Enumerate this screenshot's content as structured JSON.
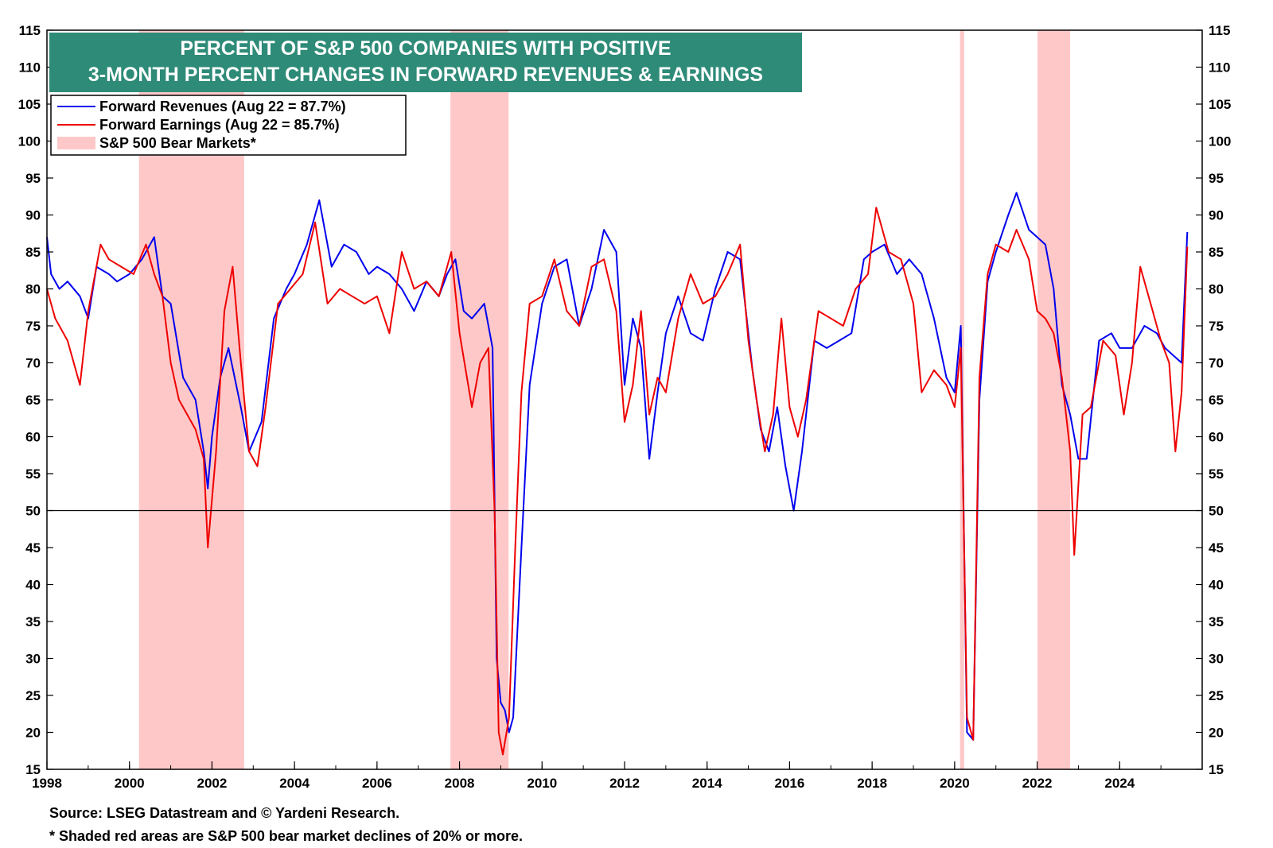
{
  "chart_data": {
    "type": "line",
    "title_lines": [
      "PERCENT OF S&P 500 COMPANIES WITH POSITIVE",
      "3-MONTH PERCENT CHANGES IN FORWARD REVENUES & EARNINGS"
    ],
    "ylim": [
      15,
      115
    ],
    "yticks": [
      15,
      20,
      25,
      30,
      35,
      40,
      45,
      50,
      55,
      60,
      65,
      70,
      75,
      80,
      85,
      90,
      95,
      100,
      105,
      110,
      115
    ],
    "xlim": [
      1998,
      2026
    ],
    "xticks": [
      1998,
      2000,
      2002,
      2004,
      2006,
      2008,
      2010,
      2012,
      2014,
      2016,
      2018,
      2020,
      2022,
      2024
    ],
    "reference_line": 50,
    "grid": false,
    "legend_position": "top-left",
    "legend": [
      {
        "label": "Forward Revenues (Aug 22 = 87.7%)",
        "color": "#0000ee",
        "kind": "line"
      },
      {
        "label": "Forward Earnings (Aug 22 = 85.7%)",
        "color": "#ee0000",
        "kind": "line"
      },
      {
        "label": "S&P 500 Bear Markets*",
        "color": "#ffc8c8",
        "kind": "box"
      }
    ],
    "bear_markets": [
      {
        "start": 2000.23,
        "end": 2002.78
      },
      {
        "start": 2007.78,
        "end": 2009.19
      },
      {
        "start": 2020.13,
        "end": 2020.23
      },
      {
        "start": 2022.01,
        "end": 2022.8
      }
    ],
    "series": [
      {
        "name": "Forward Revenues",
        "color": "#0000ee",
        "x": [
          1998.0,
          1998.1,
          1998.3,
          1998.5,
          1998.8,
          1999.0,
          1999.2,
          1999.5,
          1999.7,
          2000.0,
          2000.3,
          2000.6,
          2000.8,
          2001.0,
          2001.3,
          2001.6,
          2001.8,
          2001.9,
          2002.0,
          2002.2,
          2002.4,
          2002.7,
          2002.9,
          2003.2,
          2003.5,
          2003.8,
          2004.0,
          2004.3,
          2004.6,
          2004.9,
          2005.2,
          2005.5,
          2005.8,
          2006.0,
          2006.3,
          2006.6,
          2006.9,
          2007.2,
          2007.5,
          2007.7,
          2007.9,
          2008.1,
          2008.3,
          2008.6,
          2008.8,
          2008.9,
          2009.0,
          2009.1,
          2009.2,
          2009.3,
          2009.5,
          2009.7,
          2010.0,
          2010.3,
          2010.6,
          2010.9,
          2011.2,
          2011.5,
          2011.8,
          2012.0,
          2012.2,
          2012.4,
          2012.6,
          2012.8,
          2013.0,
          2013.3,
          2013.6,
          2013.9,
          2014.2,
          2014.5,
          2014.8,
          2015.1,
          2015.3,
          2015.5,
          2015.7,
          2015.9,
          2016.1,
          2016.3,
          2016.6,
          2016.9,
          2017.2,
          2017.5,
          2017.8,
          2018.0,
          2018.3,
          2018.6,
          2018.9,
          2019.2,
          2019.5,
          2019.8,
          2020.0,
          2020.15,
          2020.3,
          2020.45,
          2020.6,
          2020.8,
          2021.0,
          2021.3,
          2021.5,
          2021.8,
          2022.0,
          2022.2,
          2022.4,
          2022.6,
          2022.8,
          2023.0,
          2023.2,
          2023.5,
          2023.8,
          2024.0,
          2024.3,
          2024.6,
          2024.9,
          2025.1,
          2025.3,
          2025.5,
          2025.64
        ],
        "values": [
          87,
          82,
          80,
          81,
          79,
          76,
          83,
          82,
          81,
          82,
          84,
          87,
          79,
          78,
          68,
          65,
          58,
          53,
          60,
          68,
          72,
          64,
          58,
          62,
          76,
          80,
          82,
          86,
          92,
          83,
          86,
          85,
          82,
          83,
          82,
          80,
          77,
          81,
          79,
          82,
          84,
          77,
          76,
          78,
          72,
          30,
          24,
          23,
          20,
          22,
          45,
          67,
          78,
          83,
          84,
          75,
          80,
          88,
          85,
          67,
          76,
          72,
          57,
          66,
          74,
          79,
          74,
          73,
          80,
          85,
          84,
          69,
          61,
          58,
          64,
          56,
          50,
          58,
          73,
          72,
          73,
          74,
          84,
          85,
          86,
          82,
          84,
          82,
          76,
          68,
          66,
          75,
          20,
          19,
          65,
          81,
          85,
          90,
          93,
          88,
          87,
          86,
          80,
          67,
          63,
          57,
          57,
          73,
          74,
          72,
          72,
          75,
          74,
          72,
          71,
          70,
          87.7
        ]
      },
      {
        "name": "Forward Earnings",
        "color": "#ee0000",
        "x": [
          1998.0,
          1998.2,
          1998.5,
          1998.8,
          1999.0,
          1999.3,
          1999.5,
          1999.8,
          2000.1,
          2000.4,
          2000.6,
          2000.8,
          2001.0,
          2001.2,
          2001.4,
          2001.6,
          2001.8,
          2001.9,
          2002.1,
          2002.3,
          2002.5,
          2002.7,
          2002.9,
          2003.1,
          2003.3,
          2003.6,
          2003.9,
          2004.2,
          2004.5,
          2004.8,
          2005.1,
          2005.4,
          2005.7,
          2006.0,
          2006.3,
          2006.6,
          2006.9,
          2007.2,
          2007.5,
          2007.8,
          2008.0,
          2008.3,
          2008.5,
          2008.7,
          2008.85,
          2008.95,
          2009.05,
          2009.2,
          2009.35,
          2009.5,
          2009.7,
          2010.0,
          2010.3,
          2010.6,
          2010.9,
          2011.2,
          2011.5,
          2011.8,
          2012.0,
          2012.2,
          2012.4,
          2012.6,
          2012.8,
          2013.0,
          2013.3,
          2013.6,
          2013.9,
          2014.2,
          2014.5,
          2014.8,
          2015.0,
          2015.2,
          2015.4,
          2015.6,
          2015.8,
          2016.0,
          2016.2,
          2016.4,
          2016.7,
          2017.0,
          2017.3,
          2017.6,
          2017.9,
          2018.1,
          2018.4,
          2018.7,
          2019.0,
          2019.2,
          2019.5,
          2019.8,
          2020.0,
          2020.15,
          2020.3,
          2020.45,
          2020.6,
          2020.8,
          2021.0,
          2021.3,
          2021.5,
          2021.8,
          2022.0,
          2022.2,
          2022.4,
          2022.6,
          2022.8,
          2022.9,
          2023.1,
          2023.3,
          2023.6,
          2023.9,
          2024.1,
          2024.3,
          2024.5,
          2024.8,
          2025.0,
          2025.2,
          2025.35,
          2025.5,
          2025.64
        ],
        "values": [
          80,
          76,
          73,
          67,
          77,
          86,
          84,
          83,
          82,
          86,
          82,
          79,
          70,
          65,
          63,
          61,
          57,
          45,
          58,
          77,
          83,
          70,
          58,
          56,
          64,
          78,
          80,
          82,
          89,
          78,
          80,
          79,
          78,
          79,
          74,
          85,
          80,
          81,
          79,
          85,
          74,
          64,
          70,
          72,
          50,
          20,
          17,
          22,
          45,
          66,
          78,
          79,
          84,
          77,
          75,
          83,
          84,
          77,
          62,
          67,
          77,
          63,
          68,
          66,
          76,
          82,
          78,
          79,
          82,
          86,
          73,
          65,
          58,
          63,
          76,
          64,
          60,
          65,
          77,
          76,
          75,
          80,
          82,
          91,
          85,
          84,
          78,
          66,
          69,
          67,
          64,
          72,
          22,
          19,
          68,
          82,
          86,
          85,
          88,
          84,
          77,
          76,
          74,
          68,
          58,
          44,
          63,
          64,
          73,
          71,
          63,
          70,
          83,
          77,
          73,
          70,
          58,
          66,
          85.7
        ]
      }
    ],
    "annotations": [
      "Source: LSEG Datastream and © Yardeni Research.",
      "* Shaded red areas are S&P 500 bear market declines of 20% or more."
    ]
  }
}
